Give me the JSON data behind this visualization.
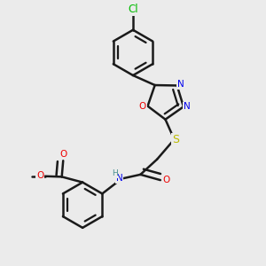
{
  "background_color": "#ebebeb",
  "bond_color": "#1a1a1a",
  "bond_width": 1.8,
  "atom_colors": {
    "C": "#1a1a1a",
    "H": "#4a9090",
    "N": "#0000ee",
    "O": "#ee0000",
    "S": "#bbbb00",
    "Cl": "#00bb00"
  },
  "font_size": 7.5
}
